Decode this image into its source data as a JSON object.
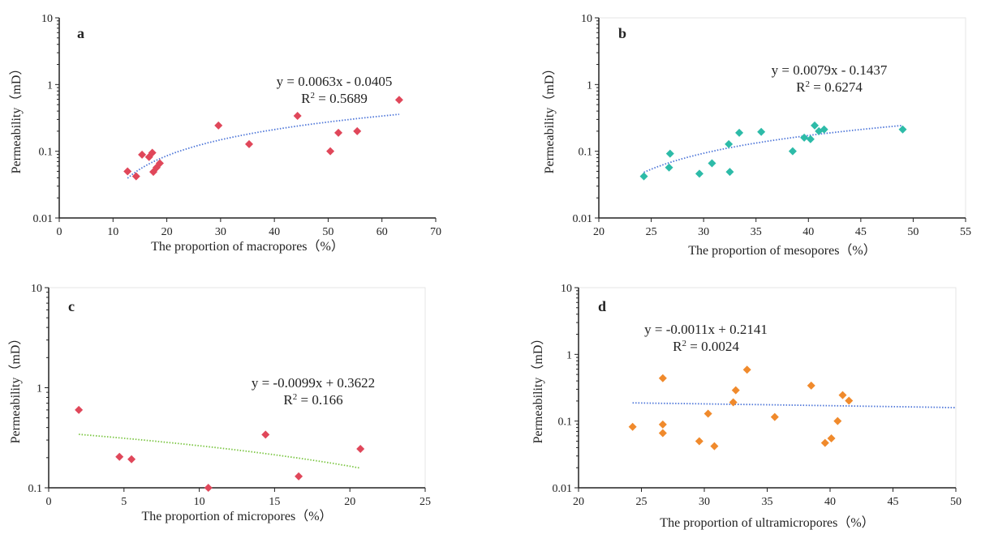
{
  "chart_data": [
    {
      "type": "scatter",
      "panel_label": "a",
      "xlabel": "The proportion of macropores（%）",
      "ylabel": "Permeability（mD）",
      "xlim": [
        0,
        70
      ],
      "xticks": [
        0,
        10,
        20,
        30,
        40,
        50,
        60,
        70
      ],
      "ylim": [
        0.01,
        10
      ],
      "yscale": "log",
      "yticks": [
        "0.01",
        "0.1",
        "1",
        "10"
      ],
      "marker_color": "#e0475a",
      "trend_color": "#4f77d9",
      "equation": "y = 0.0063x - 0.0405",
      "r2_label": "R",
      "r2_value": " = 0.5689",
      "trend": {
        "slope": 0.0063,
        "intercept": -0.0405,
        "x_range": [
          12.7,
          63.2
        ]
      },
      "x": [
        12.7,
        14.3,
        15.4,
        16.7,
        17.3,
        17.5,
        18.1,
        18.7,
        29.6,
        35.3,
        44.3,
        50.4,
        51.9,
        55.4,
        63.2
      ],
      "y": [
        0.05,
        0.042,
        0.089,
        0.082,
        0.095,
        0.049,
        0.057,
        0.066,
        0.243,
        0.128,
        0.339,
        0.1,
        0.189,
        0.2,
        0.59
      ]
    },
    {
      "type": "scatter",
      "panel_label": "b",
      "xlabel": "The proportion of mesopores（%）",
      "ylabel": "Permeability（mD）",
      "xlim": [
        20,
        55
      ],
      "xticks": [
        20,
        25,
        30,
        35,
        40,
        45,
        50,
        55
      ],
      "ylim": [
        0.01,
        10
      ],
      "yscale": "log",
      "yticks": [
        "0.01",
        "0.1",
        "1",
        "10"
      ],
      "marker_color": "#2dbba8",
      "trend_color": "#4f77d9",
      "equation": "y = 0.0079x - 0.1437",
      "r2_label": "R",
      "r2_value": " = 0.6274",
      "trend": {
        "slope": 0.0079,
        "intercept": -0.1437,
        "x_range": [
          24.3,
          49.0
        ]
      },
      "x": [
        24.3,
        26.8,
        26.7,
        29.6,
        30.8,
        32.4,
        32.5,
        33.4,
        35.5,
        38.5,
        39.6,
        40.2,
        40.6,
        41.0,
        41.5,
        49.0
      ],
      "y": [
        0.042,
        0.092,
        0.057,
        0.046,
        0.066,
        0.128,
        0.049,
        0.189,
        0.195,
        0.1,
        0.16,
        0.152,
        0.243,
        0.2,
        0.212,
        0.212
      ]
    },
    {
      "type": "scatter",
      "panel_label": "c",
      "xlabel": "The proportion of micropores（%）",
      "ylabel": "Permeability（mD）",
      "xlim": [
        0,
        25
      ],
      "xticks": [
        0,
        5,
        10,
        15,
        20,
        25
      ],
      "ylim": [
        0.1,
        10
      ],
      "yscale": "log",
      "yticks": [
        "0.1",
        "1",
        "10"
      ],
      "marker_color": "#e0475a",
      "trend_color": "#7cc644",
      "equation": "y = -0.0099x + 0.3622",
      "r2_label": "R",
      "r2_value": " = 0.166",
      "trend": {
        "slope": -0.0099,
        "intercept": 0.3622,
        "x_range": [
          2.0,
          20.7
        ]
      },
      "x": [
        2.0,
        4.7,
        5.5,
        10.6,
        14.4,
        16.6,
        20.7
      ],
      "y": [
        0.6,
        0.204,
        0.193,
        0.1,
        0.34,
        0.13,
        0.245
      ]
    },
    {
      "type": "scatter",
      "panel_label": "d",
      "xlabel": "The proportion of ultramicropores（%）",
      "ylabel": "Permeability（mD）",
      "xlim": [
        20,
        50
      ],
      "xticks": [
        20,
        25,
        30,
        35,
        40,
        45,
        50
      ],
      "ylim": [
        0.01,
        10
      ],
      "yscale": "log",
      "yticks": [
        "0.01",
        "0.1",
        "1",
        "10"
      ],
      "marker_color": "#f08a2c",
      "trend_color": "#4f77d9",
      "equation": "y = -0.0011x + 0.2141",
      "r2_label": "R",
      "r2_value": " = 0.0024",
      "trend": {
        "slope": -0.0011,
        "intercept": 0.2141,
        "x_range": [
          24.3,
          50
        ]
      },
      "x": [
        24.3,
        26.7,
        26.7,
        26.7,
        29.6,
        30.3,
        30.8,
        32.3,
        32.5,
        33.4,
        35.6,
        38.5,
        39.6,
        40.1,
        40.6,
        41.0,
        41.5
      ],
      "y": [
        0.082,
        0.44,
        0.089,
        0.066,
        0.05,
        0.129,
        0.042,
        0.191,
        0.29,
        0.59,
        0.115,
        0.34,
        0.047,
        0.055,
        0.1,
        0.245,
        0.202
      ]
    }
  ]
}
